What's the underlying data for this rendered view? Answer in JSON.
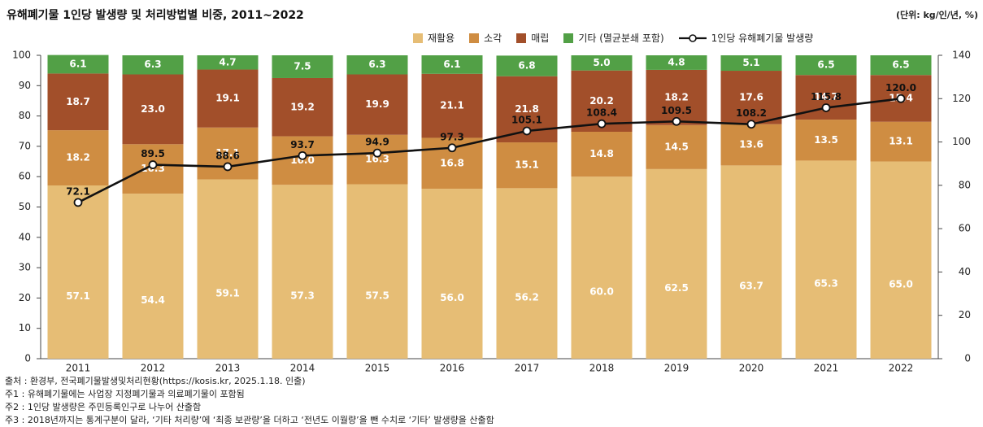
{
  "header": {
    "title": "유해폐기물 1인당 발생량 및 처리방법별 비중, 2011~2022",
    "unit": "(단위: kg/인/년, %)"
  },
  "chart_data": {
    "type": "bar",
    "stacked": true,
    "categories": [
      "2011",
      "2012",
      "2013",
      "2014",
      "2015",
      "2016",
      "2017",
      "2018",
      "2019",
      "2020",
      "2021",
      "2022"
    ],
    "series": [
      {
        "name": "재활용",
        "color": "#E6BD75",
        "values": [
          57.1,
          54.4,
          59.1,
          57.3,
          57.5,
          56.0,
          56.2,
          60.0,
          62.5,
          63.7,
          65.3,
          65.0
        ]
      },
      {
        "name": "소각",
        "color": "#CF8D42",
        "values": [
          18.2,
          16.3,
          17.1,
          16.0,
          16.3,
          16.8,
          15.1,
          14.8,
          14.5,
          13.6,
          13.5,
          13.1
        ]
      },
      {
        "name": "매립",
        "color": "#A24F2A",
        "values": [
          18.7,
          23.0,
          19.1,
          19.2,
          19.9,
          21.1,
          21.8,
          20.2,
          18.2,
          17.6,
          14.7,
          15.4
        ]
      },
      {
        "name": "기타 (멸균분쇄 포함)",
        "color": "#52A046",
        "values": [
          6.1,
          6.3,
          4.7,
          7.5,
          6.3,
          6.1,
          6.8,
          5.0,
          4.8,
          5.1,
          6.5,
          6.5
        ]
      }
    ],
    "line_series": {
      "name": "1인당 유해폐기물 발생량",
      "axis": "right",
      "values": [
        72.1,
        89.5,
        88.6,
        93.7,
        94.9,
        97.3,
        105.1,
        108.4,
        109.5,
        108.2,
        115.8,
        120.0
      ]
    },
    "ylim": [
      0,
      100
    ],
    "yticks": [
      "0",
      "10",
      "20",
      "30",
      "40",
      "50",
      "60",
      "70",
      "80",
      "90",
      "100"
    ],
    "y2lim": [
      0,
      140
    ],
    "y2ticks": [
      "0",
      "20",
      "40",
      "60",
      "80",
      "100",
      "120",
      "140"
    ],
    "xlabel": "",
    "ylabel": "",
    "grid": false,
    "legend": "top-right"
  },
  "notes": [
    "출처 : 환경부, 전국폐기물발생및처리현황(https://kosis.kr, 2025.1.18. 인출)",
    "주1 : 유해폐기물에는 사업장 지정폐기물과 의료폐기물이 포함됨",
    "주2 : 1인당 발생량은 주민등록인구로 나누어 산출함",
    "주3 : 2018년까지는 통계구분이 달라, ‘기타 처리량’에 ‘최종 보관량’을 더하고 ‘전년도 이월량’을 뺀 수치로 ‘기타’ 발생량을 산출함"
  ]
}
